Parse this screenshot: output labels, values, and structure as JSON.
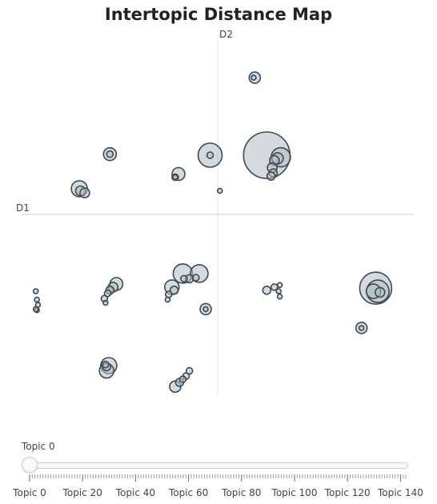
{
  "chart_data": {
    "type": "scatter",
    "title": "Intertopic Distance Map",
    "xlabel": "D1",
    "ylabel": "D2",
    "xlim": [
      -18,
      18
    ],
    "ylim": [
      -17,
      17
    ],
    "grid": false,
    "points": [
      {
        "x": 3.4,
        "y": 13.4,
        "r": 7
      },
      {
        "x": 3.3,
        "y": 13.4,
        "r": 3
      },
      {
        "x": -9.9,
        "y": 6.1,
        "r": 8
      },
      {
        "x": -9.9,
        "y": 6.1,
        "r": 4
      },
      {
        "x": -3.6,
        "y": 4.2,
        "r": 8
      },
      {
        "x": -3.9,
        "y": 3.9,
        "r": 4
      },
      {
        "x": -3.9,
        "y": 3.9,
        "r": 3
      },
      {
        "x": -12.7,
        "y": 2.8,
        "r": 10
      },
      {
        "x": -12.6,
        "y": 2.6,
        "r": 6
      },
      {
        "x": -12.2,
        "y": 2.4,
        "r": 6
      },
      {
        "x": -0.7,
        "y": 6.0,
        "r": 15
      },
      {
        "x": -0.7,
        "y": 6.0,
        "r": 4
      },
      {
        "x": 0.2,
        "y": 2.6,
        "r": 3
      },
      {
        "x": 4.5,
        "y": 6.0,
        "r": 29
      },
      {
        "x": 5.8,
        "y": 5.8,
        "r": 12
      },
      {
        "x": 5.5,
        "y": 5.7,
        "r": 7
      },
      {
        "x": 5.2,
        "y": 5.5,
        "r": 6
      },
      {
        "x": 5.0,
        "y": 4.8,
        "r": 6
      },
      {
        "x": 5.1,
        "y": 4.3,
        "r": 5
      },
      {
        "x": 4.9,
        "y": 4.0,
        "r": 5
      },
      {
        "x": -16.7,
        "y": -7.0,
        "r": 3
      },
      {
        "x": -16.6,
        "y": -7.8,
        "r": 3
      },
      {
        "x": -16.5,
        "y": -8.3,
        "r": 3
      },
      {
        "x": -16.6,
        "y": -8.8,
        "r": 3
      },
      {
        "x": -16.7,
        "y": -8.7,
        "r": 3
      },
      {
        "x": -9.3,
        "y": -6.3,
        "r": 8
      },
      {
        "x": -9.6,
        "y": -6.6,
        "r": 6
      },
      {
        "x": -9.9,
        "y": -6.9,
        "r": 5
      },
      {
        "x": -10.1,
        "y": -7.2,
        "r": 4
      },
      {
        "x": -10.4,
        "y": -7.7,
        "r": 4
      },
      {
        "x": -10.3,
        "y": -8.1,
        "r": 3
      },
      {
        "x": -3.2,
        "y": -5.3,
        "r": 12
      },
      {
        "x": -1.7,
        "y": -5.3,
        "r": 11
      },
      {
        "x": -2.6,
        "y": -5.8,
        "r": 5
      },
      {
        "x": -2.0,
        "y": -5.7,
        "r": 4
      },
      {
        "x": -3.1,
        "y": -5.8,
        "r": 4
      },
      {
        "x": -4.2,
        "y": -6.6,
        "r": 9
      },
      {
        "x": -4.0,
        "y": -6.9,
        "r": 5
      },
      {
        "x": -4.5,
        "y": -7.3,
        "r": 4
      },
      {
        "x": -4.6,
        "y": -7.8,
        "r": 3
      },
      {
        "x": -1.1,
        "y": -8.7,
        "r": 7
      },
      {
        "x": -1.1,
        "y": -8.7,
        "r": 3
      },
      {
        "x": 4.5,
        "y": -6.9,
        "r": 5
      },
      {
        "x": 5.2,
        "y": -6.6,
        "r": 4
      },
      {
        "x": 5.7,
        "y": -6.4,
        "r": 3
      },
      {
        "x": 5.6,
        "y": -7.0,
        "r": 3
      },
      {
        "x": 5.7,
        "y": -7.5,
        "r": 3
      },
      {
        "x": 14.5,
        "y": -6.7,
        "r": 20
      },
      {
        "x": 14.7,
        "y": -7.0,
        "r": 14
      },
      {
        "x": 14.3,
        "y": -7.0,
        "r": 9
      },
      {
        "x": 14.9,
        "y": -7.1,
        "r": 6
      },
      {
        "x": 13.2,
        "y": -10.5,
        "r": 7
      },
      {
        "x": 13.2,
        "y": -10.5,
        "r": 3
      },
      {
        "x": -10.0,
        "y": -14.1,
        "r": 10
      },
      {
        "x": -10.2,
        "y": -14.6,
        "r": 9
      },
      {
        "x": -10.2,
        "y": -14.2,
        "r": 5
      },
      {
        "x": -10.3,
        "y": -14.0,
        "r": 4
      },
      {
        "x": -2.6,
        "y": -14.6,
        "r": 4
      },
      {
        "x": -2.9,
        "y": -15.1,
        "r": 4
      },
      {
        "x": -3.2,
        "y": -15.4,
        "r": 4
      },
      {
        "x": -3.5,
        "y": -15.7,
        "r": 5
      },
      {
        "x": -3.9,
        "y": -16.1,
        "r": 7
      }
    ],
    "slider": {
      "current_label": "Topic 0",
      "steps": [
        "Topic 0",
        "Topic 20",
        "Topic 40",
        "Topic 60",
        "Topic 80",
        "Topic 100",
        "Topic 120",
        "Topic 140"
      ],
      "min": 0,
      "max": 142,
      "value": 0
    }
  }
}
